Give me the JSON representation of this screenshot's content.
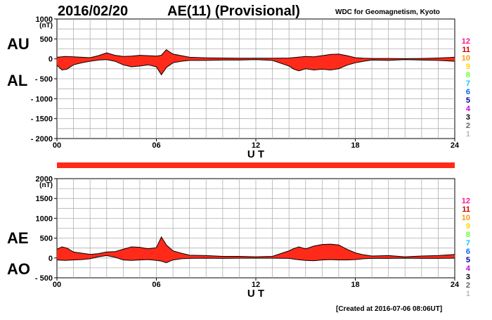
{
  "header": {
    "date": "2016/02/20",
    "title": "AE(11) (Provisional)",
    "org": "WDC for Geomagnetism, Kyoto"
  },
  "footer": "[Created at 2016-07-06 08:06UT]",
  "station_counts": [
    {
      "label": "12",
      "color": "#ff1493"
    },
    {
      "label": "11",
      "color": "#cc0000"
    },
    {
      "label": "10",
      "color": "#ff9900"
    },
    {
      "label": "9",
      "color": "#ffd700"
    },
    {
      "label": "8",
      "color": "#66ff33"
    },
    {
      "label": "7",
      "color": "#00ccff"
    },
    {
      "label": "6",
      "color": "#0066ff"
    },
    {
      "label": "5",
      "color": "#000099"
    },
    {
      "label": "4",
      "color": "#cc00cc"
    },
    {
      "label": "3",
      "color": "#000000"
    },
    {
      "label": "2",
      "color": "#666666"
    },
    {
      "label": "1",
      "color": "#bbbbbb"
    }
  ],
  "colors": {
    "fill": "#ff2a1a",
    "outline": "#000000",
    "grid": "#b0b0b0",
    "bar": "#ff2a1a"
  },
  "chart_data": [
    {
      "type": "area",
      "name": "AU/AL",
      "labels_upper": "AU",
      "labels_lower": "AL",
      "unit": "(nT)",
      "xlabel": "U T",
      "ylim": [
        -2000,
        1000
      ],
      "yticks": [
        1000,
        500,
        0,
        -500,
        -1000,
        -1500,
        -2000
      ],
      "ytick_labels": [
        "1000",
        "500",
        "0",
        "- 500",
        "- 1000",
        "- 1500",
        "- 2000"
      ],
      "xticks": [
        0,
        6,
        12,
        18,
        24
      ],
      "xtick_labels": [
        "00",
        "06",
        "12",
        "18",
        "24"
      ],
      "upper": {
        "x": [
          0,
          0.5,
          1,
          1.5,
          2,
          2.5,
          3,
          3.5,
          4,
          4.5,
          5,
          5.5,
          6,
          6.3,
          6.6,
          7,
          7.5,
          8,
          9,
          10,
          11,
          12,
          13,
          14,
          14.5,
          15,
          15.5,
          16,
          16.5,
          17,
          17.5,
          18,
          18.5,
          19,
          20,
          21,
          22,
          23,
          24
        ],
        "y": [
          40,
          60,
          50,
          40,
          30,
          80,
          150,
          90,
          60,
          70,
          90,
          80,
          70,
          90,
          230,
          120,
          80,
          40,
          25,
          20,
          15,
          15,
          15,
          20,
          40,
          60,
          50,
          80,
          110,
          120,
          80,
          30,
          15,
          10,
          10,
          5,
          10,
          20,
          40
        ]
      },
      "lower": {
        "x": [
          0,
          0.3,
          0.6,
          1,
          1.5,
          2,
          2.5,
          3,
          3.5,
          4,
          4.5,
          5,
          5.5,
          6,
          6.3,
          6.6,
          7,
          7.5,
          8,
          9,
          10,
          11,
          12,
          13,
          14,
          14.3,
          14.6,
          15,
          15.5,
          16,
          16.5,
          17,
          17.5,
          18,
          18.5,
          19,
          20,
          21,
          22,
          23,
          24
        ],
        "y": [
          -160,
          -280,
          -260,
          -150,
          -100,
          -60,
          -30,
          -20,
          -60,
          -150,
          -200,
          -180,
          -150,
          -200,
          -400,
          -220,
          -100,
          -60,
          -40,
          -40,
          -30,
          -30,
          -20,
          -40,
          -180,
          -260,
          -300,
          -250,
          -280,
          -260,
          -280,
          -250,
          -160,
          -100,
          -60,
          -30,
          -40,
          -20,
          -30,
          -40,
          -60
        ]
      }
    },
    {
      "type": "area",
      "name": "AE/AO",
      "labels_upper": "AE",
      "labels_lower": "AO",
      "unit": "(nT)",
      "xlabel": "U T",
      "ylim": [
        -500,
        2000
      ],
      "yticks": [
        2000,
        1500,
        1000,
        500,
        0,
        -500
      ],
      "ytick_labels": [
        "2000",
        "1500",
        "1000",
        "500",
        "0",
        "- 500"
      ],
      "xticks": [
        0,
        6,
        12,
        18,
        24
      ],
      "xtick_labels": [
        "00",
        "06",
        "12",
        "18",
        "24"
      ],
      "upper": {
        "x": [
          0,
          0.3,
          0.6,
          1,
          1.5,
          2,
          2.5,
          3,
          3.5,
          4,
          4.5,
          5,
          5.5,
          6,
          6.3,
          6.6,
          7,
          7.5,
          8,
          9,
          10,
          11,
          12,
          13,
          14,
          14.3,
          14.6,
          15,
          15.5,
          16,
          16.5,
          17,
          17.5,
          18,
          18.5,
          19,
          20,
          21,
          22,
          23,
          24
        ],
        "y": [
          220,
          280,
          250,
          150,
          120,
          90,
          110,
          150,
          160,
          220,
          280,
          270,
          230,
          260,
          530,
          330,
          180,
          120,
          70,
          60,
          40,
          40,
          30,
          40,
          180,
          240,
          280,
          230,
          300,
          340,
          350,
          330,
          220,
          130,
          80,
          50,
          60,
          30,
          50,
          60,
          90
        ]
      },
      "lower": {
        "x": [
          0,
          0.5,
          1,
          1.5,
          2,
          2.5,
          3,
          3.5,
          4,
          4.5,
          5,
          5.5,
          6,
          6.3,
          6.6,
          7,
          7.5,
          8,
          9,
          10,
          11,
          12,
          13,
          14,
          14.5,
          15,
          15.5,
          16,
          16.5,
          17,
          17.5,
          18,
          18.5,
          19,
          20,
          21,
          22,
          23,
          24
        ],
        "y": [
          -50,
          -60,
          -50,
          -40,
          -20,
          30,
          60,
          20,
          -50,
          -60,
          -50,
          -40,
          -60,
          -80,
          -120,
          -50,
          -20,
          -10,
          -5,
          -10,
          -5,
          -5,
          -5,
          -10,
          -40,
          -60,
          -70,
          -50,
          -40,
          -50,
          -50,
          -40,
          -20,
          -10,
          -10,
          -5,
          -10,
          -10,
          -5
        ]
      }
    }
  ]
}
